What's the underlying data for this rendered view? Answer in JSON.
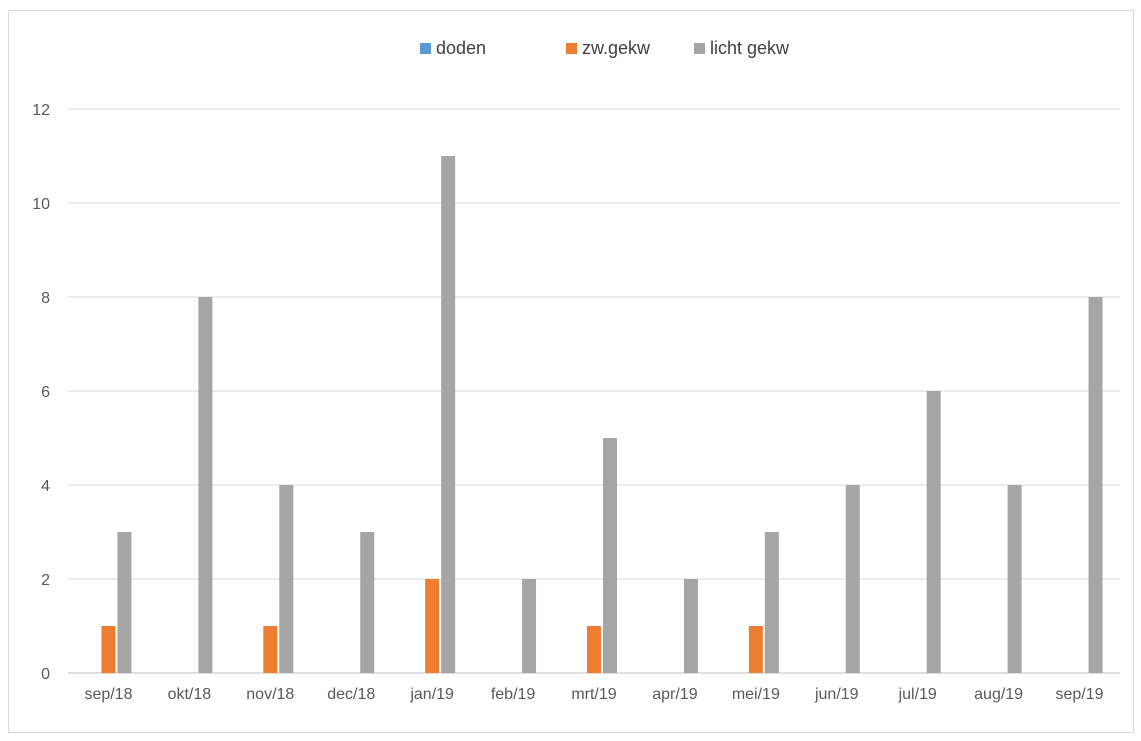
{
  "chart_data": {
    "type": "bar",
    "categories": [
      "sep/18",
      "okt/18",
      "nov/18",
      "dec/18",
      "jan/19",
      "feb/19",
      "mrt/19",
      "apr/19",
      "mei/19",
      "jun/19",
      "jul/19",
      "aug/19",
      "sep/19"
    ],
    "series": [
      {
        "name": "doden",
        "color": "#5b9bd5",
        "values": [
          0,
          0,
          0,
          0,
          0,
          0,
          0,
          0,
          0,
          0,
          0,
          0,
          0
        ]
      },
      {
        "name": "zw.gekw",
        "color": "#ed7d31",
        "values": [
          1,
          0,
          1,
          0,
          2,
          0,
          1,
          0,
          1,
          0,
          0,
          0,
          0
        ]
      },
      {
        "name": "licht gekw",
        "color": "#a5a5a5",
        "values": [
          3,
          8,
          4,
          3,
          11,
          2,
          5,
          2,
          3,
          4,
          6,
          4,
          8
        ]
      }
    ],
    "ylim": [
      0,
      12
    ],
    "yticks": [
      0,
      2,
      4,
      6,
      8,
      10,
      12
    ],
    "grid": true,
    "legend_position": "top"
  }
}
